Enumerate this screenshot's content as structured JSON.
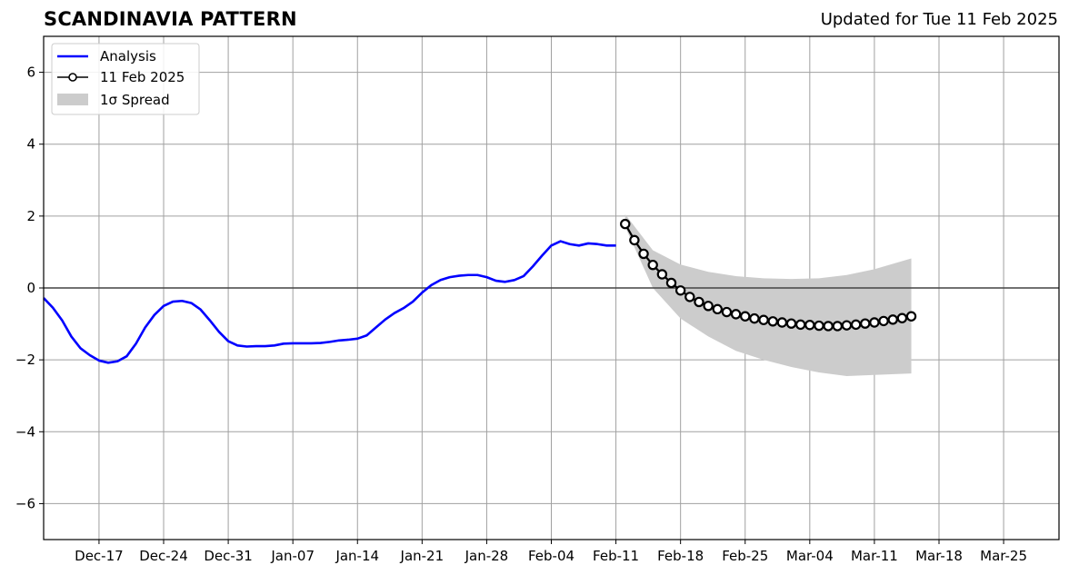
{
  "header": {
    "title": "SCANDINAVIA PATTERN",
    "updated": "Updated for Tue 11 Feb 2025"
  },
  "chart_data": {
    "type": "line",
    "title": "SCANDINAVIA PATTERN",
    "subtitle": "Updated for Tue 11 Feb 2025",
    "x_type": "date",
    "xlim": [
      "2024-12-11",
      "2025-03-31"
    ],
    "ylim": [
      -7,
      7
    ],
    "grid": true,
    "zero_line": true,
    "legend_position": "top-left",
    "x_ticks": [
      {
        "date": "2024-12-17",
        "label": "Dec-17"
      },
      {
        "date": "2024-12-24",
        "label": "Dec-24"
      },
      {
        "date": "2024-12-31",
        "label": "Dec-31"
      },
      {
        "date": "2025-01-07",
        "label": "Jan-07"
      },
      {
        "date": "2025-01-14",
        "label": "Jan-14"
      },
      {
        "date": "2025-01-21",
        "label": "Jan-21"
      },
      {
        "date": "2025-01-28",
        "label": "Jan-28"
      },
      {
        "date": "2025-02-04",
        "label": "Feb-04"
      },
      {
        "date": "2025-02-11",
        "label": "Feb-11"
      },
      {
        "date": "2025-02-18",
        "label": "Feb-18"
      },
      {
        "date": "2025-02-25",
        "label": "Feb-25"
      },
      {
        "date": "2025-03-04",
        "label": "Mar-04"
      },
      {
        "date": "2025-03-11",
        "label": "Mar-11"
      },
      {
        "date": "2025-03-18",
        "label": "Mar-18"
      },
      {
        "date": "2025-03-25",
        "label": "Mar-25"
      }
    ],
    "y_ticks": [
      {
        "value": 6,
        "label": "6"
      },
      {
        "value": 4,
        "label": "4"
      },
      {
        "value": 2,
        "label": "2"
      },
      {
        "value": 0,
        "label": "0"
      },
      {
        "value": -2,
        "label": "−2"
      },
      {
        "value": -4,
        "label": "−4"
      },
      {
        "value": -6,
        "label": "−6"
      }
    ],
    "series": [
      {
        "name": "Analysis",
        "color": "#0000ff",
        "style": "line",
        "x": [
          "2024-12-11",
          "2024-12-12",
          "2024-12-13",
          "2024-12-14",
          "2024-12-15",
          "2024-12-16",
          "2024-12-17",
          "2024-12-18",
          "2024-12-19",
          "2024-12-20",
          "2024-12-21",
          "2024-12-22",
          "2024-12-23",
          "2024-12-24",
          "2024-12-25",
          "2024-12-26",
          "2024-12-27",
          "2024-12-28",
          "2024-12-29",
          "2024-12-30",
          "2024-12-31",
          "2025-01-01",
          "2025-01-02",
          "2025-01-03",
          "2025-01-04",
          "2025-01-05",
          "2025-01-06",
          "2025-01-07",
          "2025-01-08",
          "2025-01-09",
          "2025-01-10",
          "2025-01-11",
          "2025-01-12",
          "2025-01-13",
          "2025-01-14",
          "2025-01-15",
          "2025-01-16",
          "2025-01-17",
          "2025-01-18",
          "2025-01-19",
          "2025-01-20",
          "2025-01-21",
          "2025-01-22",
          "2025-01-23",
          "2025-01-24",
          "2025-01-25",
          "2025-01-26",
          "2025-01-27",
          "2025-01-28",
          "2025-01-29",
          "2025-01-30",
          "2025-01-31",
          "2025-02-01",
          "2025-02-02",
          "2025-02-03",
          "2025-02-04",
          "2025-02-05",
          "2025-02-06",
          "2025-02-07",
          "2025-02-08",
          "2025-02-09",
          "2025-02-10",
          "2025-02-11"
        ],
        "values": [
          -0.28,
          -0.55,
          -0.9,
          -1.35,
          -1.68,
          -1.87,
          -2.02,
          -2.08,
          -2.04,
          -1.9,
          -1.55,
          -1.1,
          -0.75,
          -0.5,
          -0.38,
          -0.36,
          -0.42,
          -0.6,
          -0.9,
          -1.22,
          -1.48,
          -1.6,
          -1.63,
          -1.62,
          -1.62,
          -1.6,
          -1.55,
          -1.54,
          -1.54,
          -1.54,
          -1.53,
          -1.5,
          -1.46,
          -1.44,
          -1.41,
          -1.32,
          -1.1,
          -0.88,
          -0.7,
          -0.56,
          -0.38,
          -0.13,
          0.08,
          0.22,
          0.3,
          0.34,
          0.36,
          0.36,
          0.3,
          0.2,
          0.17,
          0.22,
          0.33,
          0.6,
          0.9,
          1.18,
          1.3,
          1.22,
          1.18,
          1.24,
          1.22,
          1.18,
          1.18
        ]
      },
      {
        "name": "11 Feb 2025",
        "color": "#000000",
        "marker_fill": "#ffffff",
        "style": "line-markers",
        "x": [
          "2025-02-12",
          "2025-02-13",
          "2025-02-14",
          "2025-02-15",
          "2025-02-16",
          "2025-02-17",
          "2025-02-18",
          "2025-02-19",
          "2025-02-20",
          "2025-02-21",
          "2025-02-22",
          "2025-02-23",
          "2025-02-24",
          "2025-02-25",
          "2025-02-26",
          "2025-02-27",
          "2025-02-28",
          "2025-03-01",
          "2025-03-02",
          "2025-03-03",
          "2025-03-04",
          "2025-03-05",
          "2025-03-06",
          "2025-03-07",
          "2025-03-08",
          "2025-03-09",
          "2025-03-10",
          "2025-03-11",
          "2025-03-12",
          "2025-03-13",
          "2025-03-14",
          "2025-03-15"
        ],
        "values": [
          1.78,
          1.33,
          0.95,
          0.64,
          0.38,
          0.14,
          -0.07,
          -0.25,
          -0.39,
          -0.5,
          -0.59,
          -0.67,
          -0.73,
          -0.79,
          -0.85,
          -0.89,
          -0.93,
          -0.96,
          -0.99,
          -1.02,
          -1.03,
          -1.05,
          -1.06,
          -1.06,
          -1.04,
          -1.02,
          -0.99,
          -0.96,
          -0.92,
          -0.88,
          -0.84,
          -0.79
        ]
      }
    ],
    "spread": {
      "name": "1σ Spread",
      "color": "#cccccc",
      "x": [
        "2025-02-12",
        "2025-02-15",
        "2025-02-18",
        "2025-02-21",
        "2025-02-24",
        "2025-02-27",
        "2025-03-02",
        "2025-03-05",
        "2025-03-08",
        "2025-03-11",
        "2025-03-15"
      ],
      "upper": [
        2.05,
        1.05,
        0.65,
        0.45,
        0.33,
        0.27,
        0.25,
        0.27,
        0.36,
        0.52,
        0.82
      ],
      "lower": [
        1.7,
        0.0,
        -0.85,
        -1.35,
        -1.75,
        -2.0,
        -2.2,
        -2.35,
        -2.45,
        -2.42,
        -2.38
      ]
    }
  }
}
